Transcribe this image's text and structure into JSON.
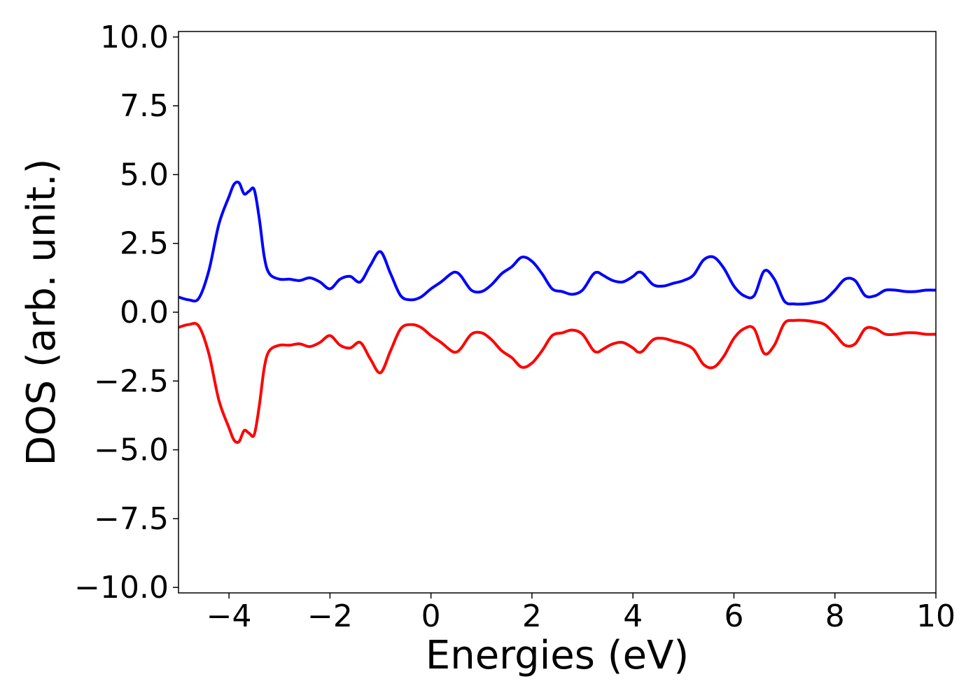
{
  "chart_data": {
    "type": "line",
    "title": "",
    "xlabel": "Energies (eV)",
    "ylabel": "DOS (arb. unit.)",
    "xlim": [
      -5,
      10
    ],
    "ylim": [
      -10.2,
      10.2
    ],
    "xticks": [
      -4,
      -2,
      0,
      2,
      4,
      6,
      8,
      10
    ],
    "xtick_labels": [
      "−4",
      "−2",
      "0",
      "2",
      "4",
      "6",
      "8",
      "10"
    ],
    "yticks": [
      10.0,
      7.5,
      5.0,
      2.5,
      0.0,
      -2.5,
      -5.0,
      -7.5,
      -10.0
    ],
    "ytick_labels": [
      "10.0",
      "7.5",
      "5.0",
      "2.5",
      "0.0",
      "−2.5",
      "−5.0",
      "−7.5",
      "−10.0"
    ],
    "grid": false,
    "legend": "none",
    "series": [
      {
        "color": "#0000ff",
        "x": [
          -5.0,
          -4.8,
          -4.6,
          -4.4,
          -4.2,
          -4.0,
          -3.9,
          -3.8,
          -3.7,
          -3.6,
          -3.5,
          -3.4,
          -3.3,
          -3.2,
          -3.0,
          -2.8,
          -2.6,
          -2.4,
          -2.2,
          -2.0,
          -1.8,
          -1.6,
          -1.4,
          -1.2,
          -1.0,
          -0.8,
          -0.6,
          -0.4,
          -0.2,
          0.0,
          0.2,
          0.4,
          0.5,
          0.6,
          0.8,
          1.0,
          1.2,
          1.4,
          1.6,
          1.8,
          2.0,
          2.2,
          2.4,
          2.6,
          2.8,
          3.0,
          3.2,
          3.3,
          3.4,
          3.6,
          3.8,
          4.0,
          4.1,
          4.2,
          4.4,
          4.6,
          4.8,
          5.0,
          5.2,
          5.4,
          5.6,
          5.8,
          6.0,
          6.2,
          6.4,
          6.6,
          6.8,
          7.0,
          7.2,
          7.4,
          7.6,
          7.8,
          8.0,
          8.2,
          8.4,
          8.6,
          8.8,
          9.0,
          9.2,
          9.4,
          9.6,
          9.8,
          10.0
        ],
        "y": [
          0.55,
          0.45,
          0.5,
          1.5,
          3.2,
          4.2,
          4.65,
          4.7,
          4.3,
          4.4,
          4.45,
          3.4,
          2.0,
          1.4,
          1.2,
          1.2,
          1.15,
          1.25,
          1.1,
          0.85,
          1.2,
          1.3,
          1.1,
          1.7,
          2.2,
          1.4,
          0.6,
          0.45,
          0.55,
          0.85,
          1.1,
          1.4,
          1.45,
          1.3,
          0.8,
          0.75,
          1.0,
          1.4,
          1.65,
          2.0,
          1.85,
          1.4,
          0.85,
          0.75,
          0.65,
          0.8,
          1.35,
          1.45,
          1.35,
          1.15,
          1.1,
          1.3,
          1.45,
          1.4,
          1.0,
          0.95,
          1.05,
          1.15,
          1.35,
          1.9,
          2.0,
          1.6,
          0.95,
          0.6,
          0.6,
          1.5,
          1.2,
          0.4,
          0.3,
          0.3,
          0.35,
          0.45,
          0.8,
          1.2,
          1.15,
          0.6,
          0.6,
          0.8,
          0.8,
          0.75,
          0.75,
          0.8,
          0.8
        ]
      },
      {
        "color": "#ff0000",
        "x": [
          -5.0,
          -4.8,
          -4.6,
          -4.4,
          -4.2,
          -4.0,
          -3.9,
          -3.8,
          -3.7,
          -3.6,
          -3.5,
          -3.4,
          -3.3,
          -3.2,
          -3.0,
          -2.8,
          -2.6,
          -2.4,
          -2.2,
          -2.0,
          -1.8,
          -1.6,
          -1.4,
          -1.2,
          -1.0,
          -0.8,
          -0.6,
          -0.4,
          -0.2,
          0.0,
          0.2,
          0.4,
          0.5,
          0.6,
          0.8,
          1.0,
          1.2,
          1.4,
          1.6,
          1.8,
          2.0,
          2.2,
          2.4,
          2.6,
          2.8,
          3.0,
          3.2,
          3.3,
          3.4,
          3.6,
          3.8,
          4.0,
          4.1,
          4.2,
          4.4,
          4.6,
          4.8,
          5.0,
          5.2,
          5.4,
          5.6,
          5.8,
          6.0,
          6.2,
          6.4,
          6.6,
          6.8,
          7.0,
          7.2,
          7.4,
          7.6,
          7.8,
          8.0,
          8.2,
          8.4,
          8.6,
          8.8,
          9.0,
          9.2,
          9.4,
          9.6,
          9.8,
          10.0
        ],
        "y": [
          -0.55,
          -0.45,
          -0.5,
          -1.5,
          -3.2,
          -4.2,
          -4.65,
          -4.7,
          -4.3,
          -4.4,
          -4.45,
          -3.4,
          -2.0,
          -1.4,
          -1.2,
          -1.2,
          -1.15,
          -1.25,
          -1.1,
          -0.85,
          -1.2,
          -1.3,
          -1.1,
          -1.7,
          -2.2,
          -1.4,
          -0.6,
          -0.45,
          -0.55,
          -0.85,
          -1.1,
          -1.4,
          -1.45,
          -1.3,
          -0.8,
          -0.75,
          -1.0,
          -1.4,
          -1.65,
          -2.0,
          -1.85,
          -1.4,
          -0.85,
          -0.75,
          -0.65,
          -0.8,
          -1.35,
          -1.45,
          -1.35,
          -1.15,
          -1.1,
          -1.3,
          -1.45,
          -1.4,
          -1.0,
          -0.95,
          -1.05,
          -1.15,
          -1.35,
          -1.9,
          -2.0,
          -1.6,
          -0.95,
          -0.6,
          -0.6,
          -1.5,
          -1.2,
          -0.4,
          -0.3,
          -0.3,
          -0.35,
          -0.45,
          -0.8,
          -1.2,
          -1.15,
          -0.6,
          -0.6,
          -0.8,
          -0.8,
          -0.75,
          -0.75,
          -0.8,
          -0.8
        ]
      }
    ]
  }
}
